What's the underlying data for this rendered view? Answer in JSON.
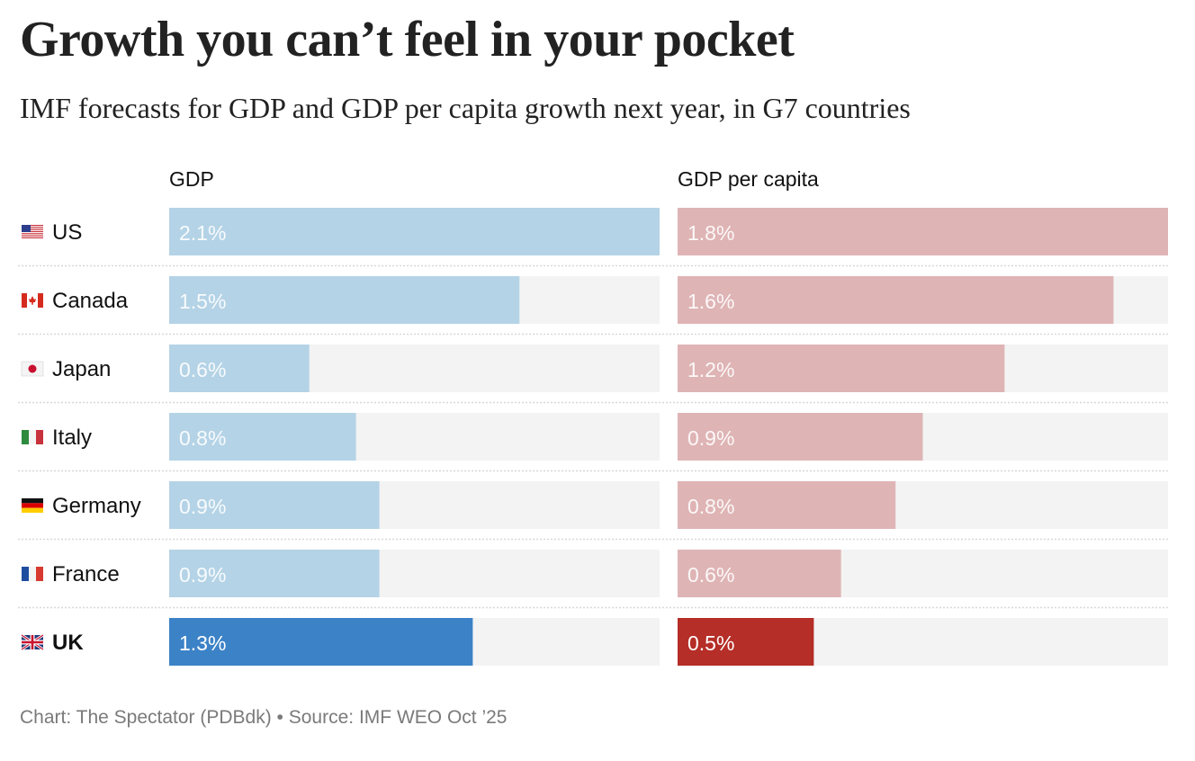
{
  "header": {
    "title": "Growth you can’t feel in your pocket",
    "subtitle": "IMF forecasts for GDP and GDP per capita growth next year, in G7 countries"
  },
  "footer": {
    "credit": "Chart: The Spectator (PDBdk) • Source: IMF WEO Oct ’25"
  },
  "colors": {
    "gdp_bar": "#b4d3e6",
    "gdp_highlight": "#3b82c7",
    "per_capita_bar": "#dfb4b5",
    "per_capita_highlight": "#b52e27",
    "track": "#f3f3f3",
    "label_text": "#ffffff",
    "divider": "#d8d8d8"
  },
  "chart_data": {
    "type": "bar",
    "orientation": "horizontal",
    "title": "Growth you can’t feel in your pocket",
    "subtitle": "IMF forecasts for GDP and GDP per capita growth next year, in G7 countries",
    "categories": [
      "US",
      "Canada",
      "Japan",
      "Italy",
      "Germany",
      "France",
      "UK"
    ],
    "flags": [
      "us-flag",
      "canada-flag",
      "japan-flag",
      "italy-flag",
      "germany-flag",
      "france-flag",
      "uk-flag"
    ],
    "highlight": "UK",
    "unit": "%",
    "series": [
      {
        "name": "GDP",
        "values": [
          2.1,
          1.5,
          0.6,
          0.8,
          0.9,
          0.9,
          1.3
        ],
        "labels": [
          "2.1%",
          "1.5%",
          "0.6%",
          "0.8%",
          "0.9%",
          "0.9%",
          "1.3%"
        ]
      },
      {
        "name": "GDP per capita",
        "values": [
          1.8,
          1.6,
          1.2,
          0.9,
          0.8,
          0.6,
          0.5
        ],
        "labels": [
          "1.8%",
          "1.6%",
          "1.2%",
          "0.9%",
          "0.8%",
          "0.6%",
          "0.5%"
        ]
      }
    ],
    "xlim": [
      0,
      2.1
    ],
    "grid": false,
    "legend": "column headers at top",
    "source": "Chart: The Spectator (PDBdk) • Source: IMF WEO Oct ’25"
  }
}
